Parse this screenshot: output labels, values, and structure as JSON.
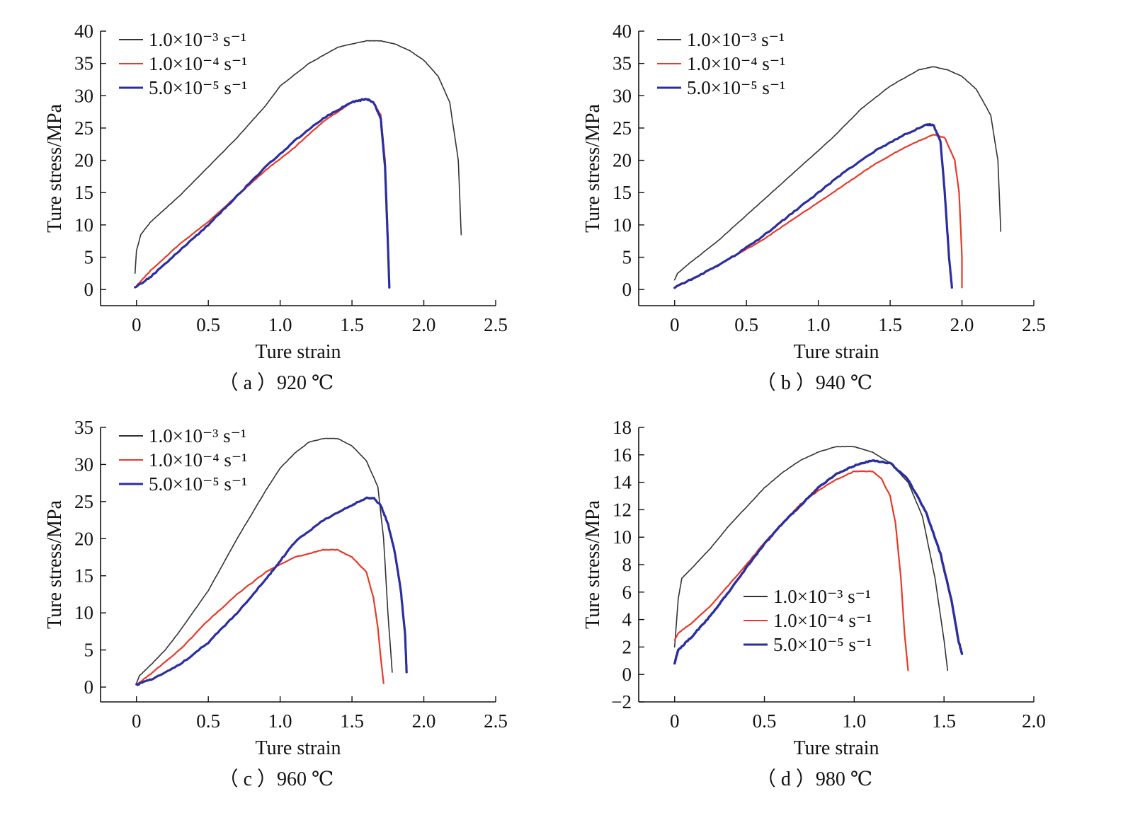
{
  "colors": {
    "series_1e3": "#333333",
    "series_1e4": "#e8392a",
    "series_5e5": "#2b2f9e",
    "axis": "#111111"
  },
  "chart_data": [
    {
      "type": "line",
      "caption": "（ a ）920 ℃",
      "xlabel": "Ture strain",
      "ylabel": "Ture stress/MPa",
      "xlim": [
        -0.25,
        2.5
      ],
      "ylim": [
        -2.5,
        40
      ],
      "xticks": [
        0,
        0.5,
        1.0,
        1.5,
        2.0,
        2.5
      ],
      "xtick_labels": [
        "0",
        "0.5",
        "1.0",
        "1.5",
        "2.0",
        "2.5"
      ],
      "yticks": [
        0,
        5,
        10,
        15,
        20,
        25,
        30,
        35,
        40
      ],
      "ytick_labels": [
        "0",
        "5",
        "10",
        "15",
        "20",
        "25",
        "30",
        "35",
        "40"
      ],
      "legend_position": "top-left",
      "series": [
        {
          "name": "1.0×10⁻³ s⁻¹",
          "color_key": "series_1e3",
          "width": 1.6,
          "x": [
            -0.01,
            0.0,
            0.03,
            0.1,
            0.2,
            0.3,
            0.5,
            0.7,
            0.9,
            1.0,
            1.2,
            1.4,
            1.6,
            1.7,
            1.8,
            1.9,
            2.0,
            2.1,
            2.18,
            2.24,
            2.26
          ],
          "y": [
            2.5,
            6.0,
            8.5,
            10.5,
            12.5,
            14.5,
            19.0,
            23.5,
            28.5,
            31.5,
            35.0,
            37.5,
            38.5,
            38.5,
            38.0,
            37.0,
            35.5,
            33.0,
            29.0,
            20.0,
            8.5
          ]
        },
        {
          "name": "1.0×10⁻⁴ s⁻¹",
          "color_key": "series_1e4",
          "width": 2.2,
          "x": [
            -0.01,
            0.1,
            0.3,
            0.5,
            0.7,
            0.9,
            1.1,
            1.3,
            1.5,
            1.6,
            1.65,
            1.7,
            1.73,
            1.75,
            1.76
          ],
          "y": [
            0.3,
            3.0,
            7.0,
            10.5,
            14.5,
            18.5,
            22.0,
            26.0,
            29.0,
            29.5,
            29.0,
            27.0,
            20.0,
            8.0,
            0.3
          ]
        },
        {
          "name": "5.0×10⁻⁵ s⁻¹",
          "color_key": "series_5e5",
          "width": 3.2,
          "x": [
            -0.01,
            0.1,
            0.3,
            0.5,
            0.7,
            0.9,
            1.1,
            1.3,
            1.5,
            1.6,
            1.65,
            1.7,
            1.73,
            1.75,
            1.76
          ],
          "y": [
            0.3,
            2.0,
            6.0,
            10.0,
            14.5,
            19.0,
            23.0,
            26.5,
            29.0,
            29.5,
            29.0,
            26.5,
            19.0,
            7.0,
            0.3
          ]
        }
      ]
    },
    {
      "type": "line",
      "caption": "（ b ）940 ℃",
      "xlabel": "Ture strain",
      "ylabel": "Ture stress/MPa",
      "xlim": [
        -0.25,
        2.5
      ],
      "ylim": [
        -2.5,
        40
      ],
      "xticks": [
        0,
        0.5,
        1.0,
        1.5,
        2.0,
        2.5
      ],
      "xtick_labels": [
        "0",
        "0.5",
        "1.0",
        "1.5",
        "2.0",
        "2.5"
      ],
      "yticks": [
        0,
        5,
        10,
        15,
        20,
        25,
        30,
        35,
        40
      ],
      "ytick_labels": [
        "0",
        "5",
        "10",
        "15",
        "20",
        "25",
        "30",
        "35",
        "40"
      ],
      "legend_position": "top-left",
      "series": [
        {
          "name": "1.0×10⁻³ s⁻¹",
          "color_key": "series_1e3",
          "width": 1.6,
          "x": [
            0.0,
            0.02,
            0.1,
            0.3,
            0.5,
            0.7,
            0.9,
            1.1,
            1.3,
            1.5,
            1.7,
            1.8,
            1.9,
            2.0,
            2.1,
            2.2,
            2.25,
            2.27
          ],
          "y": [
            1.5,
            2.5,
            4.0,
            7.5,
            11.5,
            15.5,
            19.5,
            23.5,
            28.0,
            31.5,
            34.0,
            34.5,
            34.0,
            33.0,
            31.0,
            27.0,
            20.0,
            9.0
          ]
        },
        {
          "name": "1.0×10⁻⁴ s⁻¹",
          "color_key": "series_1e4",
          "width": 2.2,
          "x": [
            0.0,
            0.2,
            0.4,
            0.6,
            0.8,
            1.0,
            1.2,
            1.4,
            1.6,
            1.8,
            1.88,
            1.95,
            1.98,
            2.0,
            2.0
          ],
          "y": [
            0.3,
            2.5,
            5.0,
            7.5,
            10.5,
            13.5,
            16.5,
            19.5,
            22.0,
            24.0,
            23.5,
            20.0,
            15.0,
            5.0,
            0.3
          ]
        },
        {
          "name": "5.0×10⁻⁵ s⁻¹",
          "color_key": "series_5e5",
          "width": 3.2,
          "x": [
            0.0,
            0.2,
            0.4,
            0.6,
            0.8,
            1.0,
            1.2,
            1.4,
            1.6,
            1.75,
            1.8,
            1.85,
            1.88,
            1.91,
            1.93
          ],
          "y": [
            0.3,
            2.5,
            5.0,
            8.0,
            11.5,
            15.0,
            18.5,
            21.5,
            24.0,
            25.5,
            25.5,
            23.0,
            15.0,
            5.0,
            0.3
          ]
        }
      ]
    },
    {
      "type": "line",
      "caption": "（ c ）960 ℃",
      "xlabel": "Ture strain",
      "ylabel": "Ture stress/MPa",
      "xlim": [
        -0.25,
        2.5
      ],
      "ylim": [
        -2,
        35
      ],
      "xticks": [
        0,
        0.5,
        1.0,
        1.5,
        2.0,
        2.5
      ],
      "xtick_labels": [
        "0",
        "0.5",
        "1.0",
        "1.5",
        "2.0",
        "2.5"
      ],
      "yticks": [
        0,
        5,
        10,
        15,
        20,
        25,
        30,
        35
      ],
      "ytick_labels": [
        "0",
        "5",
        "10",
        "15",
        "20",
        "25",
        "30",
        "35"
      ],
      "legend_position": "top-left",
      "series": [
        {
          "name": "1.0×10⁻³ s⁻¹",
          "color_key": "series_1e3",
          "width": 1.6,
          "x": [
            0.0,
            0.02,
            0.1,
            0.2,
            0.3,
            0.5,
            0.7,
            0.9,
            1.0,
            1.1,
            1.2,
            1.3,
            1.4,
            1.5,
            1.6,
            1.68,
            1.72,
            1.75,
            1.78
          ],
          "y": [
            0.5,
            1.5,
            3.0,
            5.0,
            7.5,
            13.0,
            20.0,
            26.5,
            29.5,
            31.5,
            33.0,
            33.5,
            33.5,
            32.5,
            30.5,
            27.0,
            20.0,
            10.0,
            2.0
          ]
        },
        {
          "name": "1.0×10⁻⁴ s⁻¹",
          "color_key": "series_1e4",
          "width": 2.2,
          "x": [
            0.0,
            0.1,
            0.3,
            0.5,
            0.7,
            0.9,
            1.1,
            1.3,
            1.4,
            1.5,
            1.6,
            1.65,
            1.68,
            1.7,
            1.72
          ],
          "y": [
            0.3,
            1.8,
            5.0,
            9.0,
            12.5,
            15.5,
            17.5,
            18.5,
            18.5,
            17.5,
            15.5,
            12.0,
            8.0,
            4.0,
            0.5
          ]
        },
        {
          "name": "5.0×10⁻⁵ s⁻¹",
          "color_key": "series_5e5",
          "width": 3.2,
          "x": [
            0.0,
            0.1,
            0.3,
            0.5,
            0.7,
            0.9,
            1.0,
            1.1,
            1.3,
            1.5,
            1.6,
            1.65,
            1.7,
            1.75,
            1.8,
            1.84,
            1.87,
            1.88
          ],
          "y": [
            0.3,
            1.0,
            3.0,
            6.0,
            10.0,
            14.5,
            17.0,
            19.5,
            22.5,
            24.5,
            25.5,
            25.5,
            24.5,
            22.0,
            18.0,
            13.0,
            7.0,
            2.0
          ]
        }
      ]
    },
    {
      "type": "line",
      "caption": "（ d ）980 ℃",
      "xlabel": "Ture strain",
      "ylabel": "Ture stress/MPa",
      "xlim": [
        -0.2,
        2.0
      ],
      "ylim": [
        -2,
        18
      ],
      "xticks": [
        0,
        0.5,
        1.0,
        1.5,
        2.0
      ],
      "xtick_labels": [
        "0",
        "0.5",
        "1.0",
        "1.5",
        "2.0"
      ],
      "yticks": [
        -2,
        0,
        2,
        4,
        6,
        8,
        10,
        12,
        14,
        16,
        18
      ],
      "ytick_labels": [
        "−2",
        "0",
        "2",
        "4",
        "6",
        "8",
        "10",
        "12",
        "14",
        "16",
        "18"
      ],
      "legend_position": "bottom-right",
      "series": [
        {
          "name": "1.0×10⁻³ s⁻¹",
          "color_key": "series_1e3",
          "width": 1.6,
          "x": [
            0.0,
            0.02,
            0.04,
            0.1,
            0.2,
            0.3,
            0.4,
            0.5,
            0.6,
            0.7,
            0.8,
            0.9,
            1.0,
            1.1,
            1.2,
            1.3,
            1.38,
            1.45,
            1.5,
            1.52
          ],
          "y": [
            2.0,
            5.5,
            7.0,
            7.8,
            9.2,
            10.8,
            12.2,
            13.6,
            14.7,
            15.6,
            16.2,
            16.6,
            16.6,
            16.2,
            15.4,
            14.0,
            11.5,
            7.0,
            2.5,
            0.3
          ]
        },
        {
          "name": "1.0×10⁻⁴ s⁻¹",
          "color_key": "series_1e4",
          "width": 2.2,
          "x": [
            0.0,
            0.02,
            0.1,
            0.2,
            0.3,
            0.4,
            0.5,
            0.6,
            0.7,
            0.8,
            0.9,
            1.0,
            1.1,
            1.15,
            1.2,
            1.23,
            1.26,
            1.28,
            1.3
          ],
          "y": [
            2.5,
            3.0,
            3.8,
            5.0,
            6.5,
            8.0,
            9.6,
            11.0,
            12.4,
            13.4,
            14.2,
            14.8,
            14.8,
            14.3,
            13.0,
            11.0,
            7.0,
            3.0,
            0.3
          ]
        },
        {
          "name": "5.0×10⁻⁵ s⁻¹",
          "color_key": "series_5e5",
          "width": 3.4,
          "x": [
            0.0,
            0.02,
            0.1,
            0.2,
            0.3,
            0.4,
            0.5,
            0.6,
            0.7,
            0.8,
            0.9,
            1.0,
            1.1,
            1.2,
            1.3,
            1.4,
            1.48,
            1.54,
            1.58,
            1.6
          ],
          "y": [
            0.8,
            1.8,
            2.8,
            4.3,
            6.0,
            7.8,
            9.5,
            11.0,
            12.3,
            13.6,
            14.6,
            15.2,
            15.6,
            15.4,
            14.2,
            11.8,
            8.8,
            5.5,
            2.5,
            1.5
          ]
        }
      ]
    }
  ]
}
